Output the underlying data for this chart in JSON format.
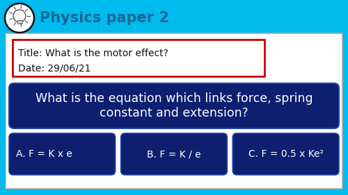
{
  "bg_color": "#00bbee",
  "header_text": "Physics paper 2",
  "header_color": "#1a6696",
  "header_fontsize": 15,
  "white_panel_color": "#ffffff",
  "white_panel_border": "#aaaaaa",
  "title_box_text_line1": "Title: What is the motor effect?",
  "title_box_text_line2": "Date: 29/06/21",
  "title_box_border_color": "#cc0000",
  "question_bg": "#0d1f6e",
  "question_text": "What is the equation which links force, spring\nconstant and extension?",
  "question_text_color": "#ffffff",
  "question_fontsize": 12.5,
  "answer_bg": "#0d1f6e",
  "answer_text_color": "#ffffff",
  "answer_fontsize": 10,
  "answers": [
    "A. F = K x e",
    "B. F = K / e",
    "C. F = 0.5 x Ke²"
  ],
  "answer_text_align": [
    "left",
    "center",
    "center"
  ],
  "bulb_circle_color": "#ffffff",
  "bulb_stroke_color": "#111111",
  "fig_width": 5.0,
  "fig_height": 2.81,
  "dpi": 100
}
